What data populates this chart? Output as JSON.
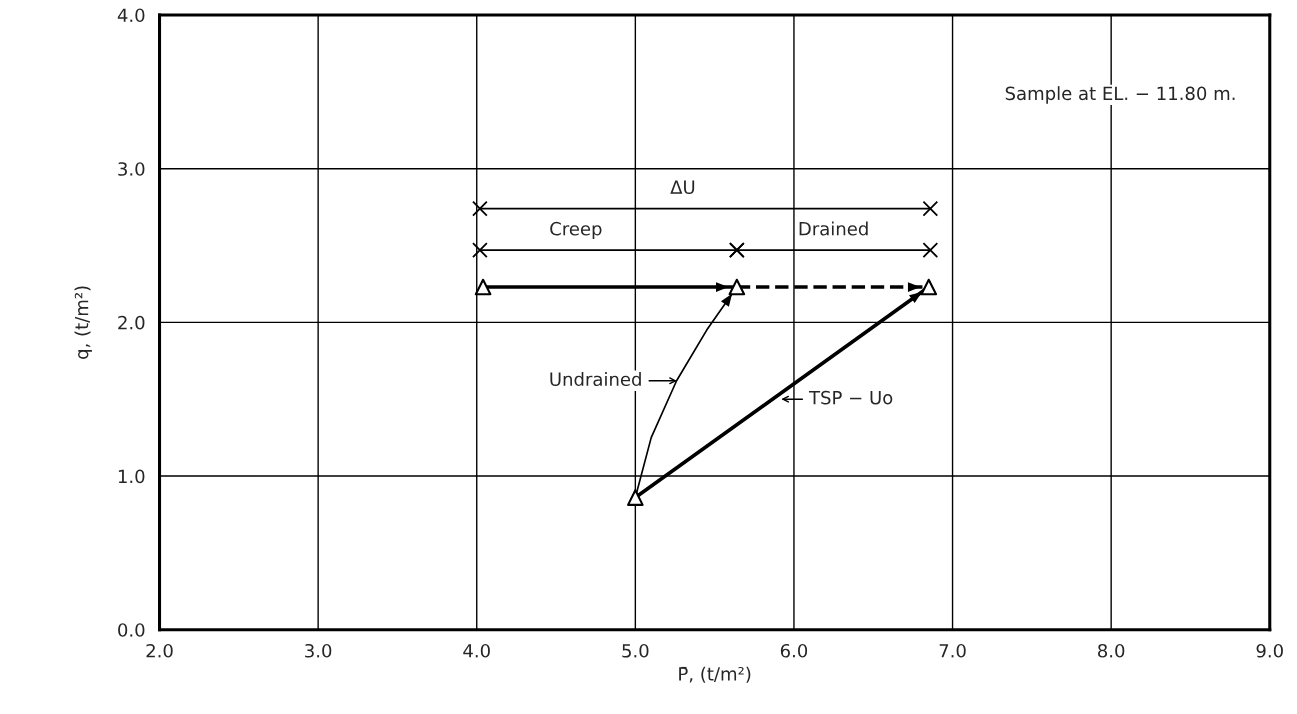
{
  "chart_data": {
    "type": "line",
    "xlabel": "P̄, (t/m²)",
    "ylabel": "q, (t/m²)",
    "xlim": [
      2.0,
      9.0
    ],
    "ylim": [
      0.0,
      4.0
    ],
    "xticks": [
      {
        "value": 2,
        "label": "2.0"
      },
      {
        "value": 3,
        "label": "3.0"
      },
      {
        "value": 4,
        "label": "4.0"
      },
      {
        "value": 5,
        "label": "5.0"
      },
      {
        "value": 6,
        "label": "6.0"
      },
      {
        "value": 7,
        "label": "7.0"
      },
      {
        "value": 8,
        "label": "8.0"
      },
      {
        "value": 9,
        "label": "9.0"
      }
    ],
    "yticks": [
      {
        "value": 0,
        "label": "0.0"
      },
      {
        "value": 1,
        "label": "1.0"
      },
      {
        "value": 2,
        "label": "2.0"
      },
      {
        "value": 3,
        "label": "3.0"
      },
      {
        "value": 4,
        "label": "4.0"
      }
    ],
    "grid": true,
    "legend": false,
    "series": [
      {
        "color": "#000000",
        "x": [
          5.0,
          5.1,
          5.26,
          5.45,
          5.64
        ],
        "values": [
          0.86,
          1.25,
          1.62,
          1.95,
          2.23
        ],
        "marker": "none",
        "line_style": "solid"
      },
      {
        "type": "line",
        "color": "#000000",
        "x": [
          5.0,
          6.85
        ],
        "values": [
          0.86,
          2.23
        ],
        "marker": "none",
        "line_style": "solid"
      },
      {
        "type": "line",
        "color": "#000000",
        "x": [
          4.04,
          5.64
        ],
        "values": [
          2.23,
          2.23
        ],
        "marker": "none",
        "line_style": "solid"
      },
      {
        "type": "line",
        "color": "#000000",
        "x": [
          5.64,
          6.85
        ],
        "values": [
          2.23,
          2.23
        ],
        "marker": "none",
        "line_style": "dashed"
      },
      {
        "type": "line",
        "color": "#000000",
        "x": [
          4.02,
          6.86
        ],
        "values": [
          2.74,
          2.74
        ],
        "marker": "cross",
        "line_style": "solid"
      },
      {
        "type": "line",
        "color": "#000000",
        "x": [
          4.02,
          5.64
        ],
        "values": [
          2.47,
          2.47
        ],
        "marker": "cross",
        "line_style": "solid"
      },
      {
        "type": "line",
        "color": "#000000",
        "x": [
          5.64,
          6.86
        ],
        "values": [
          2.47,
          2.47
        ],
        "marker": "cross",
        "line_style": "solid"
      },
      {
        "type": "scatter",
        "color": "#000000",
        "x": [
          5.0,
          4.04,
          5.64,
          6.85
        ],
        "values": [
          0.86,
          2.23,
          2.23,
          2.23
        ],
        "marker": "triangle"
      }
    ],
    "annotations": [
      "Sample at EL. − 11.80 m.",
      {
        "text": "ΔU",
        "x": 5.3,
        "y": 2.74
      },
      {
        "text": "Creep",
        "x": 4.8,
        "y": 2.47
      },
      {
        "text": "Drained",
        "x": 6.25,
        "y": 2.47
      },
      "Undrained",
      "TSP − Uo"
    ]
  }
}
